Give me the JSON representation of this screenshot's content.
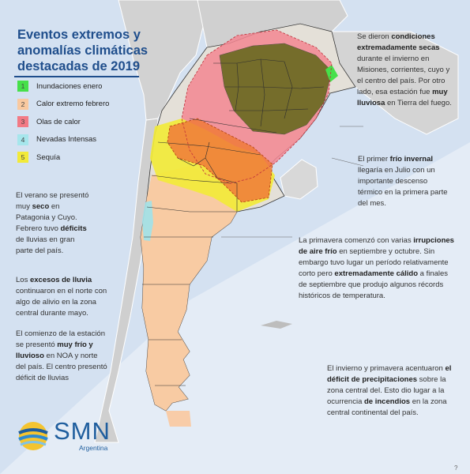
{
  "title_lines": [
    "Eventos extremos y",
    "anomalías climáticas",
    "destacadas de 2019"
  ],
  "legend": [
    {
      "number": "1",
      "label": "Inundaciones enero",
      "color": "#46e04a"
    },
    {
      "number": "2",
      "label": "Calor extremo febrero",
      "color": "#f9c9a0"
    },
    {
      "number": "3",
      "label": "Olas de calor",
      "color": "#f27a85"
    },
    {
      "number": "4",
      "label": "Nevadas Intensas",
      "color": "#a6e6ec"
    },
    {
      "number": "5",
      "label": "Sequía",
      "color": "#f2ea3a"
    }
  ],
  "notes": {
    "top_right": [
      {
        "text": "Se dieron ",
        "bold": false
      },
      {
        "text": "condiciones extremadamente secas",
        "bold": true
      },
      {
        "text": " durante el invierno en Misiones, corrientes, cuyo y el centro del país. Por otro lado, esa estación fue ",
        "bold": false
      },
      {
        "text": "muy lluviosa",
        "bold": true
      },
      {
        "text": " en Tierra del fuego.",
        "bold": false
      }
    ],
    "mid_right": [
      {
        "text": "El primer ",
        "bold": false
      },
      {
        "text": "frío invernal",
        "bold": true
      },
      {
        "text": " llegaría en Julio con un importante descenso térmico en la primera parte del mes.",
        "bold": false
      }
    ],
    "spring": [
      {
        "text": "La primavera comenzó con varias ",
        "bold": false
      },
      {
        "text": "irrupciones de aire frío",
        "bold": true
      },
      {
        "text": " en septiembre y octubre. Sin embargo tuvo lugar un período relativamente corto pero ",
        "bold": false
      },
      {
        "text": "extremadamente cálido",
        "bold": true
      },
      {
        "text": " a finales de septiembre que produjo algunos récords históricos de temperatura.",
        "bold": false
      }
    ],
    "left_summer": [
      {
        "text": "El verano se presentó muy ",
        "bold": false
      },
      {
        "text": "seco",
        "bold": true
      },
      {
        "text": " en Patagonia y Cuyo. Febrero tuvo ",
        "bold": false
      },
      {
        "text": "déficits",
        "bold": true
      },
      {
        "text": " de lluvias en gran parte del país.",
        "bold": false
      }
    ],
    "left_rain": [
      {
        "text": "Los ",
        "bold": false
      },
      {
        "text": "excesos de lluvia",
        "bold": true
      },
      {
        "text": " continuaron en el norte con algo de alivio en la zona central durante mayo.",
        "bold": false
      }
    ],
    "left_autumn": [
      {
        "text": "El comienzo de la estación se presentó ",
        "bold": false
      },
      {
        "text": "muy frío y lluvioso",
        "bold": true
      },
      {
        "text": " en NOA y norte del país. El centro presentó déficit de lluvias",
        "bold": false
      }
    ],
    "bottom_right": [
      {
        "text": "El invierno y primavera acentuaron ",
        "bold": false
      },
      {
        "text": "el déficit de precipitaciones",
        "bold": true
      },
      {
        "text": " sobre la zona central del. Esto dio lugar a la ocurrencia ",
        "bold": false
      },
      {
        "text": "de incendios",
        "bold": true
      },
      {
        "text": " en la zona central continental del país.",
        "bold": false
      }
    ]
  },
  "logo": {
    "word": "SMN",
    "sub": "Argentina"
  },
  "corner_mark": "?"
}
